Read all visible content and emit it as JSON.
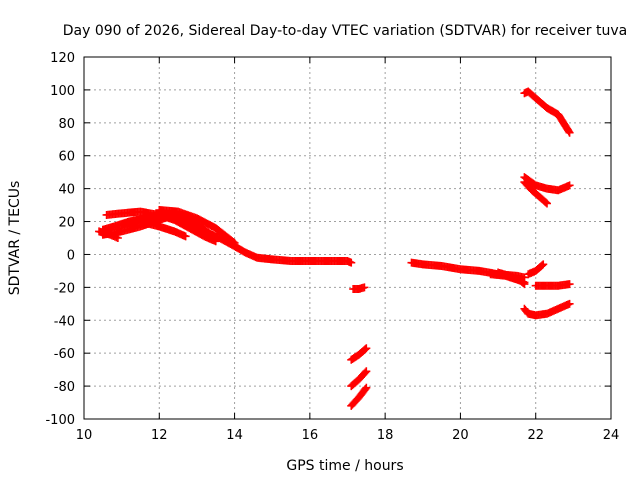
{
  "chart_data": {
    "type": "scatter",
    "title": "Day 090 of 2026, Sidereal Day-to-day VTEC variation (SDTVAR) for receiver tuva",
    "xlabel": "GPS time / hours",
    "ylabel": "SDTVAR / TECUs",
    "xlim": [
      10,
      24
    ],
    "ylim": [
      -100,
      120
    ],
    "xticks": [
      10,
      12,
      14,
      16,
      18,
      20,
      22,
      24
    ],
    "yticks": [
      -100,
      -80,
      -60,
      -40,
      -20,
      0,
      20,
      40,
      60,
      80,
      100,
      120
    ],
    "grid": true,
    "marker": "+",
    "color": "#ff0000",
    "series": [
      {
        "name": "track-1",
        "points": [
          [
            10.5,
            15
          ],
          [
            10.8,
            17
          ],
          [
            11.2,
            20
          ],
          [
            11.6,
            22
          ],
          [
            12.0,
            24
          ],
          [
            12.4,
            23
          ],
          [
            12.8,
            20
          ],
          [
            13.2,
            14
          ],
          [
            13.6,
            10
          ],
          [
            14.0,
            5
          ],
          [
            14.3,
            1
          ],
          [
            14.6,
            -2
          ],
          [
            15.0,
            -3
          ],
          [
            15.5,
            -4
          ],
          [
            16.0,
            -4
          ],
          [
            16.5,
            -4
          ],
          [
            17.0,
            -4
          ],
          [
            17.1,
            -5
          ]
        ]
      },
      {
        "name": "track-2",
        "points": [
          [
            10.6,
            24
          ],
          [
            11.0,
            25
          ],
          [
            11.5,
            26
          ],
          [
            12.0,
            24
          ],
          [
            12.4,
            21
          ],
          [
            12.8,
            16
          ],
          [
            13.2,
            11
          ],
          [
            13.5,
            8
          ]
        ]
      },
      {
        "name": "track-3",
        "points": [
          [
            10.5,
            12
          ],
          [
            11.0,
            14
          ],
          [
            11.5,
            17
          ],
          [
            12.0,
            21
          ],
          [
            12.4,
            24
          ],
          [
            12.8,
            21
          ],
          [
            13.2,
            15
          ],
          [
            13.5,
            10
          ]
        ]
      },
      {
        "name": "track-4",
        "points": [
          [
            11.0,
            18
          ],
          [
            11.5,
            20
          ],
          [
            12.0,
            17
          ],
          [
            12.4,
            14
          ],
          [
            12.7,
            11
          ]
        ]
      },
      {
        "name": "track-5",
        "points": [
          [
            10.4,
            14
          ],
          [
            10.7,
            12
          ],
          [
            10.9,
            10
          ]
        ]
      },
      {
        "name": "track-6",
        "points": [
          [
            12.0,
            27
          ],
          [
            12.5,
            26
          ],
          [
            13.0,
            22
          ],
          [
            13.5,
            16
          ],
          [
            14.0,
            7
          ]
        ]
      },
      {
        "name": "track-7",
        "points": [
          [
            17.15,
            -21
          ],
          [
            17.3,
            -21
          ],
          [
            17.45,
            -20
          ]
        ]
      },
      {
        "name": "track-8",
        "points": [
          [
            17.1,
            -64
          ],
          [
            17.3,
            -61
          ],
          [
            17.5,
            -57
          ]
        ]
      },
      {
        "name": "track-9",
        "points": [
          [
            17.1,
            -80
          ],
          [
            17.3,
            -76
          ],
          [
            17.5,
            -71
          ]
        ]
      },
      {
        "name": "track-10",
        "points": [
          [
            17.1,
            -92
          ],
          [
            17.3,
            -87
          ],
          [
            17.5,
            -81
          ]
        ]
      },
      {
        "name": "track-11",
        "points": [
          [
            18.7,
            -5
          ],
          [
            19.0,
            -6
          ],
          [
            19.5,
            -7
          ],
          [
            20.0,
            -9
          ],
          [
            20.5,
            -10
          ],
          [
            21.0,
            -12
          ],
          [
            21.5,
            -13
          ],
          [
            21.7,
            -14
          ]
        ]
      },
      {
        "name": "track-12",
        "points": [
          [
            21.0,
            -11
          ],
          [
            21.3,
            -13
          ],
          [
            21.5,
            -15
          ],
          [
            21.7,
            -17
          ]
        ]
      },
      {
        "name": "track-13",
        "points": [
          [
            20.8,
            -12
          ],
          [
            21.2,
            -13
          ],
          [
            21.6,
            -16
          ],
          [
            21.7,
            -18
          ]
        ]
      },
      {
        "name": "track-14",
        "points": [
          [
            21.7,
            98
          ],
          [
            21.8,
            99
          ],
          [
            22.0,
            95
          ],
          [
            22.3,
            89
          ],
          [
            22.6,
            85
          ],
          [
            22.9,
            74
          ]
        ]
      },
      {
        "name": "track-15",
        "points": [
          [
            21.7,
            47
          ],
          [
            22.0,
            42
          ],
          [
            22.3,
            40
          ],
          [
            22.6,
            39
          ],
          [
            22.9,
            42
          ]
        ]
      },
      {
        "name": "track-16",
        "points": [
          [
            21.7,
            44
          ],
          [
            21.9,
            39
          ],
          [
            22.1,
            35
          ],
          [
            22.3,
            31
          ]
        ]
      },
      {
        "name": "track-17",
        "points": [
          [
            21.8,
            -12
          ],
          [
            22.0,
            -10
          ],
          [
            22.2,
            -6
          ]
        ]
      },
      {
        "name": "track-18",
        "points": [
          [
            22.0,
            -19
          ],
          [
            22.3,
            -19
          ],
          [
            22.6,
            -19
          ],
          [
            22.9,
            -18
          ]
        ]
      },
      {
        "name": "track-19",
        "points": [
          [
            21.7,
            -33
          ],
          [
            21.8,
            -36
          ],
          [
            22.0,
            -37
          ],
          [
            22.3,
            -36
          ],
          [
            22.6,
            -33
          ],
          [
            22.9,
            -30
          ]
        ]
      }
    ]
  }
}
